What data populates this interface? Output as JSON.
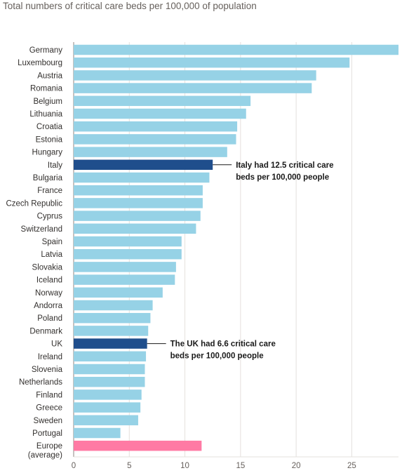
{
  "chart_data": {
    "type": "bar",
    "orientation": "horizontal",
    "title": "Total numbers of critical care beds per 100,000 of population",
    "xlabel": "",
    "ylabel": "",
    "xlim": [
      0,
      29.2
    ],
    "xticks": [
      0,
      5,
      10,
      15,
      20,
      25
    ],
    "grid": true,
    "categories": [
      "Germany",
      "Luxembourg",
      "Austria",
      "Romania",
      "Belgium",
      "Lithuania",
      "Croatia",
      "Estonia",
      "Hungary",
      "Italy",
      "Bulgaria",
      "France",
      "Czech Republic",
      "Cyprus",
      "Switzerland",
      "Spain",
      "Latvia",
      "Slovakia",
      "Iceland",
      "Norway",
      "Andorra",
      "Poland",
      "Denmark",
      "UK",
      "Ireland",
      "Slovenia",
      "Netherlands",
      "Finland",
      "Greece",
      "Sweden",
      "Portugal",
      "Europe (average)"
    ],
    "values": [
      29.2,
      24.8,
      21.8,
      21.4,
      15.9,
      15.5,
      14.7,
      14.6,
      13.8,
      12.5,
      12.2,
      11.6,
      11.6,
      11.4,
      11.0,
      9.7,
      9.7,
      9.2,
      9.1,
      8.0,
      7.1,
      6.9,
      6.7,
      6.6,
      6.5,
      6.4,
      6.4,
      6.1,
      6.0,
      5.8,
      4.2,
      11.5
    ],
    "colors": {
      "default": "#96d2e6",
      "highlight": "#1f4e8c",
      "average": "#ff7aa4"
    },
    "highlight": [
      "Italy",
      "UK"
    ],
    "average_category": "Europe (average)",
    "annotations": [
      {
        "category": "Italy",
        "lines": [
          "Italy had 12.5 critical care",
          "beds per 100,000 people"
        ]
      },
      {
        "category": "UK",
        "lines": [
          "The UK had 6.6 critical care",
          "beds per 100,000 people"
        ]
      }
    ]
  }
}
